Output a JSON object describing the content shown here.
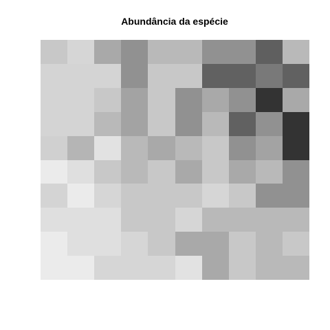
{
  "chart_data": {
    "type": "heatmap",
    "title": "Abundância da espécie",
    "xlabel": "",
    "ylabel": "",
    "legend": "none",
    "grid": false,
    "axes_visible": false,
    "rows": 10,
    "cols": 10,
    "color_scale": "grayscale",
    "row_order": "top-to-bottom",
    "cell_gray_levels": [
      [
        200,
        214,
        169,
        145,
        185,
        185,
        145,
        145,
        95,
        185
      ],
      [
        212,
        212,
        212,
        145,
        200,
        200,
        97,
        97,
        121,
        97
      ],
      [
        212,
        212,
        200,
        163,
        200,
        145,
        169,
        145,
        51,
        169
      ],
      [
        212,
        212,
        185,
        163,
        200,
        145,
        185,
        97,
        145,
        51
      ],
      [
        208,
        181,
        226,
        185,
        169,
        185,
        200,
        145,
        163,
        51
      ],
      [
        235,
        223,
        200,
        185,
        200,
        169,
        200,
        169,
        185,
        145
      ],
      [
        212,
        235,
        214,
        200,
        200,
        200,
        214,
        200,
        145,
        145
      ],
      [
        223,
        223,
        223,
        200,
        200,
        214,
        185,
        185,
        185,
        185
      ],
      [
        235,
        223,
        223,
        214,
        200,
        169,
        169,
        200,
        185,
        200
      ],
      [
        235,
        235,
        214,
        214,
        214,
        226,
        169,
        200,
        185,
        185
      ]
    ]
  }
}
